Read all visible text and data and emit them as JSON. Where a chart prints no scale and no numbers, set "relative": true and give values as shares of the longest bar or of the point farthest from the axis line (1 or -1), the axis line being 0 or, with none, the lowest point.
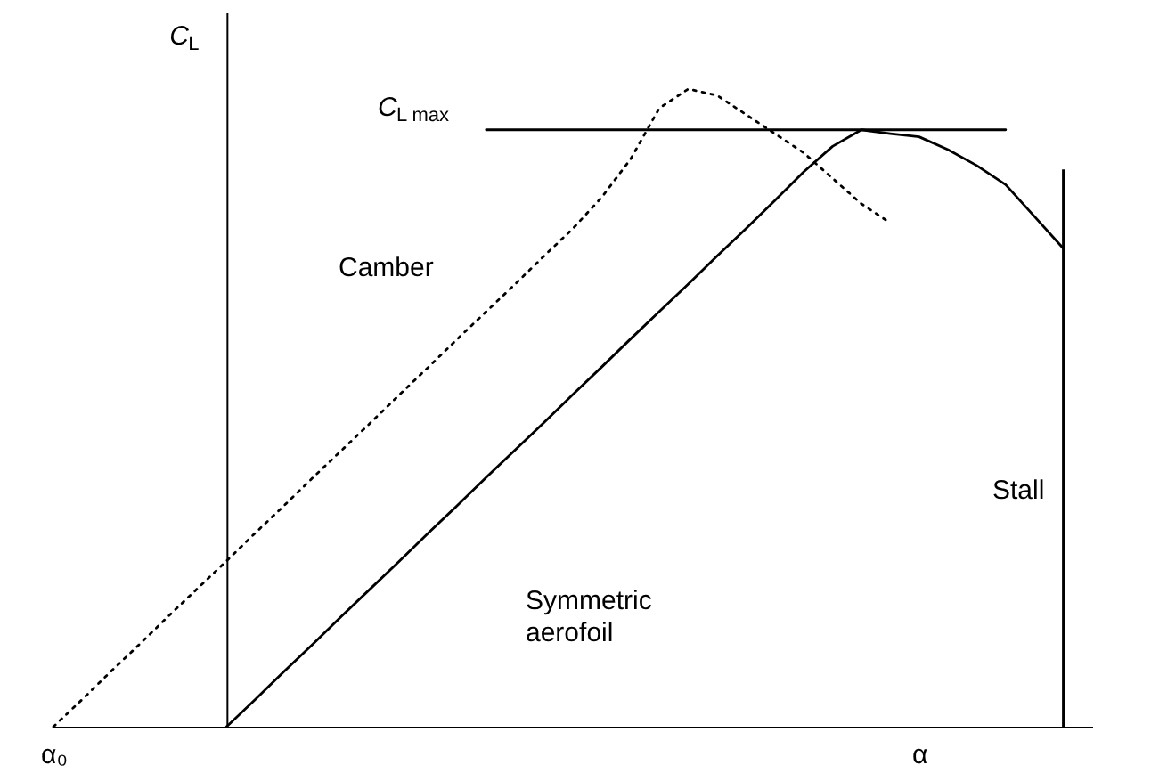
{
  "chart_data": {
    "type": "line",
    "relative": true,
    "ylabel": "C$_{L}$",
    "categories": [
      "α₀",
      null,
      null,
      null,
      null,
      null,
      null,
      null,
      null,
      null,
      null,
      null,
      null,
      null,
      null,
      null,
      null,
      null,
      null,
      null,
      null,
      null,
      null,
      null,
      null,
      null,
      null,
      null,
      null,
      null,
      "α",
      null,
      null,
      null,
      null,
      null,
      null
    ],
    "grid": false,
    "marker": "none",
    "series": [
      {
        "color": "#000000",
        "line_style": "dotted",
        "values": [
          0,
          0.043,
          0.087,
          0.13,
          0.174,
          0.217,
          0.26,
          0.304,
          0.347,
          0.391,
          0.434,
          0.477,
          0.521,
          0.564,
          0.608,
          0.651,
          0.694,
          0.738,
          0.781,
          0.83,
          0.89,
          0.97,
          1.0,
          0.99,
          0.96,
          0.93,
          0.9,
          0.86,
          0.82,
          0.79,
          null,
          null,
          null,
          null,
          null,
          null,
          null
        ]
      },
      {
        "color": "#000000",
        "line_style": "solid",
        "values": [
          null,
          null,
          null,
          null,
          null,
          null,
          0,
          0.043,
          0.087,
          0.13,
          0.174,
          0.217,
          0.26,
          0.304,
          0.347,
          0.391,
          0.434,
          0.477,
          0.521,
          0.564,
          0.608,
          0.651,
          0.694,
          0.738,
          0.781,
          0.825,
          0.87,
          0.91,
          0.936,
          0.93,
          0.925,
          0.905,
          0.88,
          0.85,
          0.8,
          0.75,
          null
        ]
      },
      {
        "color": "#000000",
        "line_style": "solid",
        "values": [
          null,
          null,
          null,
          null,
          null,
          null,
          null,
          null,
          null,
          null,
          null,
          null,
          null,
          null,
          null,
          0.936,
          0.936,
          0.936,
          0.936,
          0.936,
          0.936,
          0.936,
          0.936,
          0.936,
          0.936,
          0.936,
          0.936,
          0.936,
          0.936,
          0.936,
          0.936,
          0.936,
          0.936,
          0.936,
          null,
          null,
          null
        ]
      },
      {
        "type": "bar",
        "color": "#000000",
        "values": [
          null,
          null,
          null,
          null,
          null,
          null,
          null,
          null,
          null,
          null,
          null,
          null,
          null,
          null,
          null,
          null,
          null,
          null,
          null,
          null,
          null,
          null,
          null,
          null,
          null,
          null,
          null,
          null,
          null,
          null,
          null,
          null,
          null,
          null,
          null,
          0.874,
          null
        ]
      }
    ],
    "annotations": [
      "C$_{L max}$",
      "Camber",
      "Symmetric aerofoil",
      "Stall"
    ]
  }
}
